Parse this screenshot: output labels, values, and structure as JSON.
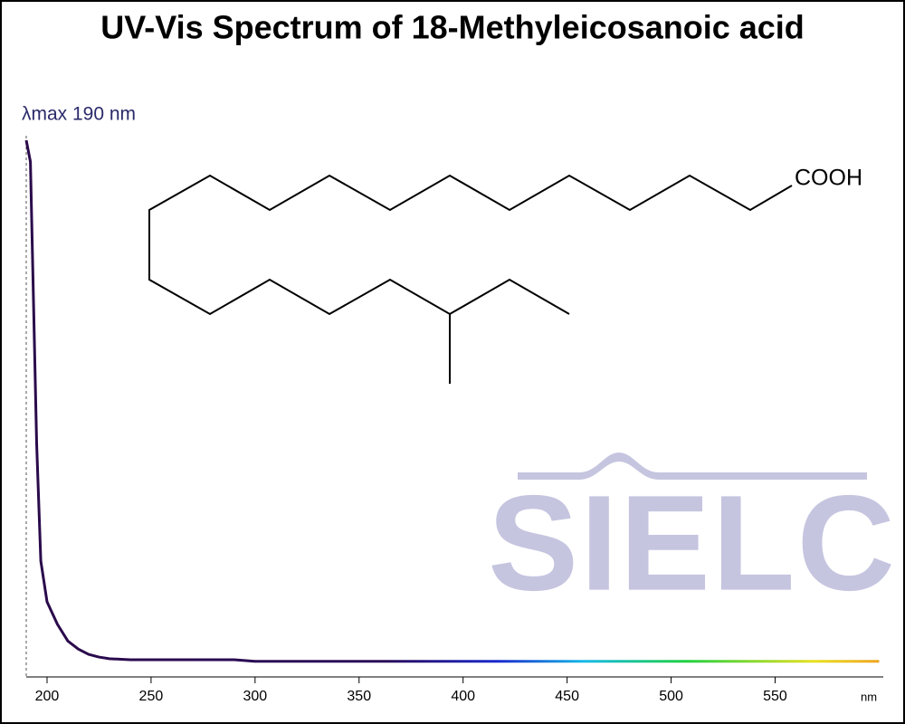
{
  "chart_data": {
    "type": "line",
    "title": "UV-Vis Spectrum of 18-Methyleicosanoic acid",
    "annotation": "λmax  190 nm",
    "structure_label": "COOH",
    "watermark": "SIELC",
    "x_label": "nm",
    "x": [
      190,
      192,
      195,
      197,
      200,
      205,
      210,
      215,
      220,
      225,
      230,
      240,
      250,
      290,
      300,
      350,
      400,
      450,
      500,
      550,
      600
    ],
    "series": [
      {
        "name": "18-Methyleicosanoic acid",
        "color": "#2a0a4a",
        "values": [
          1.0,
          0.96,
          0.435,
          0.216,
          0.14,
          0.098,
          0.067,
          0.052,
          0.042,
          0.037,
          0.034,
          0.032,
          0.032,
          0.032,
          0.029,
          0.029,
          0.029,
          0.029,
          0.029,
          0.029,
          0.029
        ]
      }
    ],
    "xlim": [
      190,
      602
    ],
    "ylim": [
      0,
      1
    ],
    "xticks": [
      200,
      250,
      300,
      350,
      400,
      450,
      500,
      550
    ]
  }
}
